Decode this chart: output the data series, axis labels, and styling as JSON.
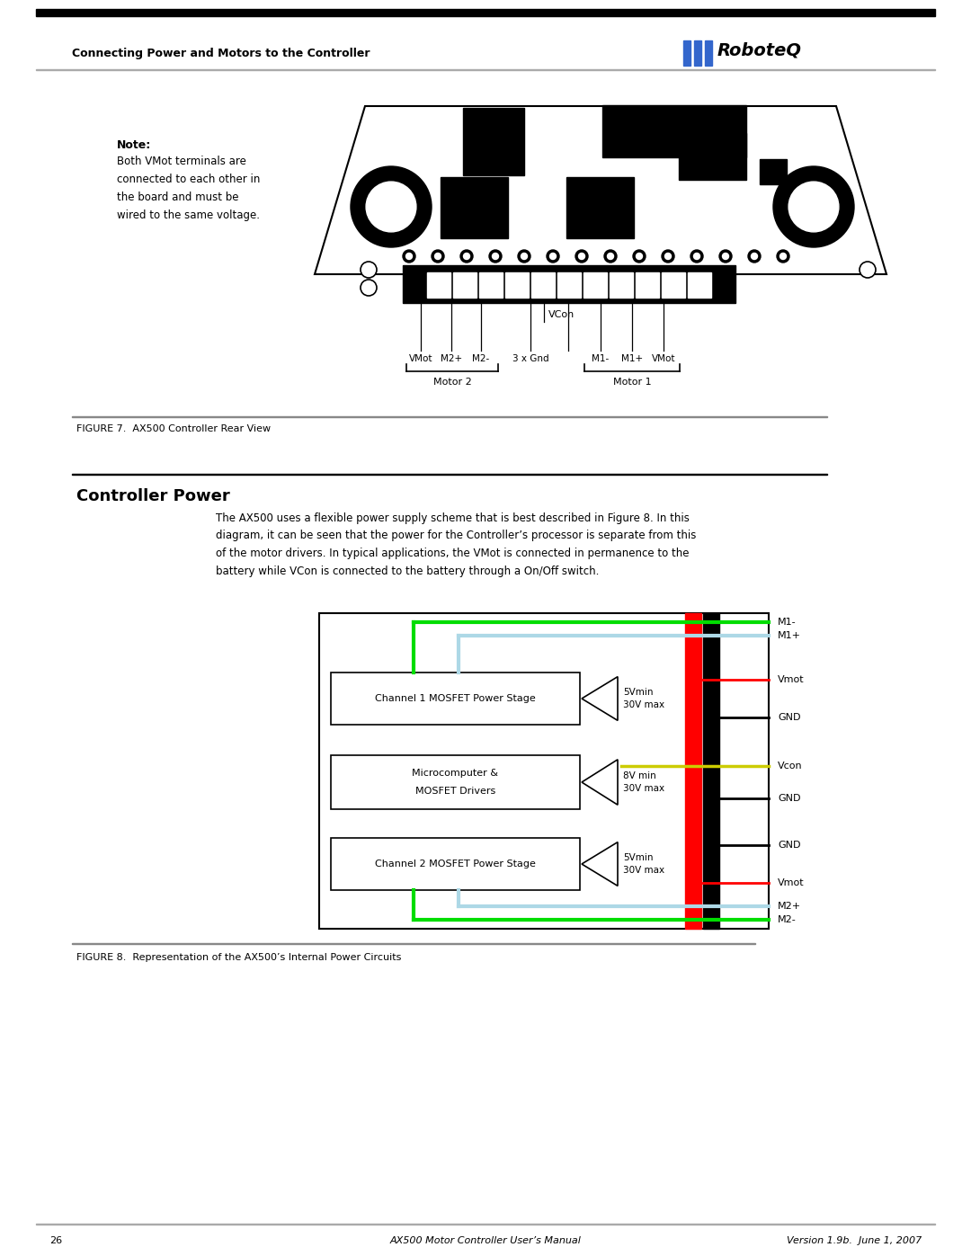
{
  "page_width": 10.8,
  "page_height": 13.97,
  "bg_color": "#ffffff",
  "header_text": "Connecting Power and Motors to the Controller",
  "footer_page": "26",
  "footer_center": "AX500 Motor Controller User’s Manual",
  "footer_right": "Version 1.9b.  June 1, 2007",
  "note_bold": "Note:",
  "note_body": "Both VMot terminals are\nconnected to each other in\nthe board and must be\nwired to the same voltage.",
  "figure7_caption": "FIGURE 7.  AX500 Controller Rear View",
  "section_title": "Controller Power",
  "body_text": "The AX500 uses a flexible power supply scheme that is best described in Figure 8. In this\ndiagram, it can be seen that the power for the Controller’s processor is separate from this\nof the motor drivers. In typical applications, the VMot is connected in permanence to the\nbattery while VCon is connected to the battery through a On/Off switch.",
  "figure8_caption": "FIGURE 8.  Representation of the AX500’s Internal Power Circuits",
  "connector_labels": [
    "VMot",
    "M2+",
    "M2-",
    "3 x Gnd",
    "M1-",
    "M1+",
    "VMot"
  ],
  "motor2_label": "Motor 2",
  "motor1_label": "Motor 1",
  "vcon_label": "VCon"
}
